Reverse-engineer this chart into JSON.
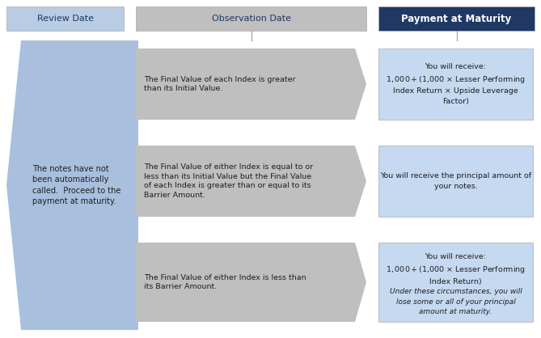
{
  "fig_width": 6.69,
  "fig_height": 4.18,
  "dpi": 100,
  "bg_color": "#ffffff",
  "header_review_bg": "#b8cce4",
  "header_obs_bg": "#bfbfbf",
  "header_payment_bg": "#1f3864",
  "header_text_color_dark": "#1f3864",
  "header_text_color_light": "#ffffff",
  "left_block_bg": "#a8c0dd",
  "arrow_bg": "#bfbfbf",
  "right_box_bg": "#c5d9f1",
  "left_block_text": "The notes have not\nbeen automatically\ncalled.  Proceed to the\npayment at maturity.",
  "header_review": "Review Date",
  "header_obs": "Observation Date",
  "header_payment": "Payment at Maturity",
  "arrow_texts": [
    "The Final Value of each Index is greater\nthan its Initial Value.",
    "The Final Value of either Index is equal to or\nless than its Initial Value but the Final Value\nof each Index is greater than or equal to its\nBarrier Amount.",
    "The Final Value of either Index is less than\nits Barrier Amount."
  ],
  "payment_text_normal": [
    "You will receive:\n$1,000 + ($1,000 × Lesser Performing\nIndex Return × Upside Leverage\nFactor)",
    "You will receive the principal amount of\nyour notes.",
    "You will receive:\n$1,000 + ($1,000 × Lesser Performing\nIndex Return)"
  ],
  "payment_text_italic": [
    "",
    "",
    "Under these circumstances, you will\nlose some or all of your principal\namount at maturity."
  ],
  "text_color": "#1f1f1f"
}
